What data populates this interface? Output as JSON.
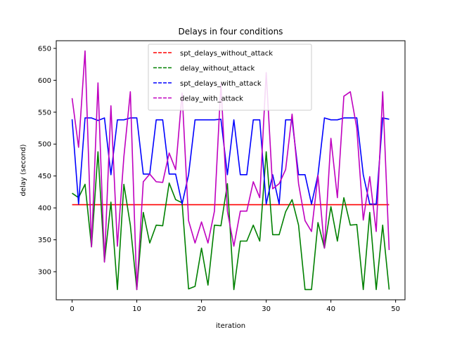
{
  "chart_data": {
    "type": "line",
    "title": "Delays in four conditions",
    "xlabel": "iteration",
    "ylabel": "delay (second)",
    "xlim": [
      -2.45,
      51.45
    ],
    "ylim": [
      256,
      662
    ],
    "xticks": [
      0,
      10,
      20,
      30,
      40,
      50
    ],
    "yticks": [
      300,
      350,
      400,
      450,
      500,
      550,
      600,
      650
    ],
    "legend_position": "upper center",
    "grid": false,
    "x": [
      0,
      1,
      2,
      3,
      4,
      5,
      6,
      7,
      8,
      9,
      10,
      11,
      12,
      13,
      14,
      15,
      16,
      17,
      18,
      19,
      20,
      21,
      22,
      23,
      24,
      25,
      26,
      27,
      28,
      29,
      30,
      31,
      32,
      33,
      34,
      35,
      36,
      37,
      38,
      39,
      40,
      41,
      42,
      43,
      44,
      45,
      46,
      47,
      48,
      49
    ],
    "series": [
      {
        "name": "spt_delays_without_attack",
        "color": "#ff0000",
        "style": "dashed",
        "values": [
          405,
          405,
          405,
          405,
          405,
          405,
          405,
          405,
          405,
          405,
          405,
          405,
          405,
          405,
          405,
          405,
          405,
          405,
          405,
          405,
          405,
          405,
          405,
          405,
          405,
          405,
          405,
          405,
          405,
          405,
          405,
          405,
          405,
          405,
          405,
          405,
          405,
          405,
          405,
          405,
          405,
          405,
          405,
          405,
          405,
          405,
          405,
          405,
          405,
          405
        ]
      },
      {
        "name": "delay_without_attack",
        "color": "#008000",
        "style": "dashed",
        "values": [
          423,
          416,
          437,
          339,
          488,
          316,
          409,
          272,
          437,
          373,
          272,
          393,
          345,
          373,
          372,
          439,
          413,
          408,
          273,
          277,
          337,
          279,
          373,
          372,
          438,
          272,
          348,
          348,
          373,
          348,
          488,
          358,
          358,
          394,
          413,
          373,
          272,
          272,
          377,
          337,
          402,
          348,
          416,
          373,
          374,
          272,
          393,
          272,
          373,
          272
        ]
      },
      {
        "name": "spt_delays_with_attack",
        "color": "#0000ff",
        "style": "dashed",
        "values": [
          539,
          406,
          541,
          541,
          537,
          541,
          452,
          538,
          538,
          541,
          541,
          453,
          453,
          538,
          538,
          453,
          453,
          406,
          452,
          538,
          538,
          538,
          538,
          539,
          452,
          538,
          452,
          452,
          538,
          538,
          406,
          452,
          406,
          538,
          538,
          452,
          452,
          406,
          452,
          541,
          538,
          538,
          541,
          541,
          541,
          452,
          406,
          406,
          541,
          539
        ]
      },
      {
        "name": "delay_with_attack",
        "color": "#bf00bf",
        "style": "dashed",
        "values": [
          572,
          495,
          646,
          339,
          596,
          315,
          560,
          340,
          480,
          582,
          272,
          441,
          453,
          441,
          440,
          486,
          460,
          580,
          380,
          345,
          378,
          345,
          395,
          595,
          395,
          340,
          395,
          395,
          441,
          416,
          612,
          430,
          438,
          460,
          547,
          438,
          380,
          363,
          451,
          337,
          509,
          416,
          575,
          582,
          525,
          381,
          449,
          363,
          582,
          334
        ]
      }
    ]
  }
}
